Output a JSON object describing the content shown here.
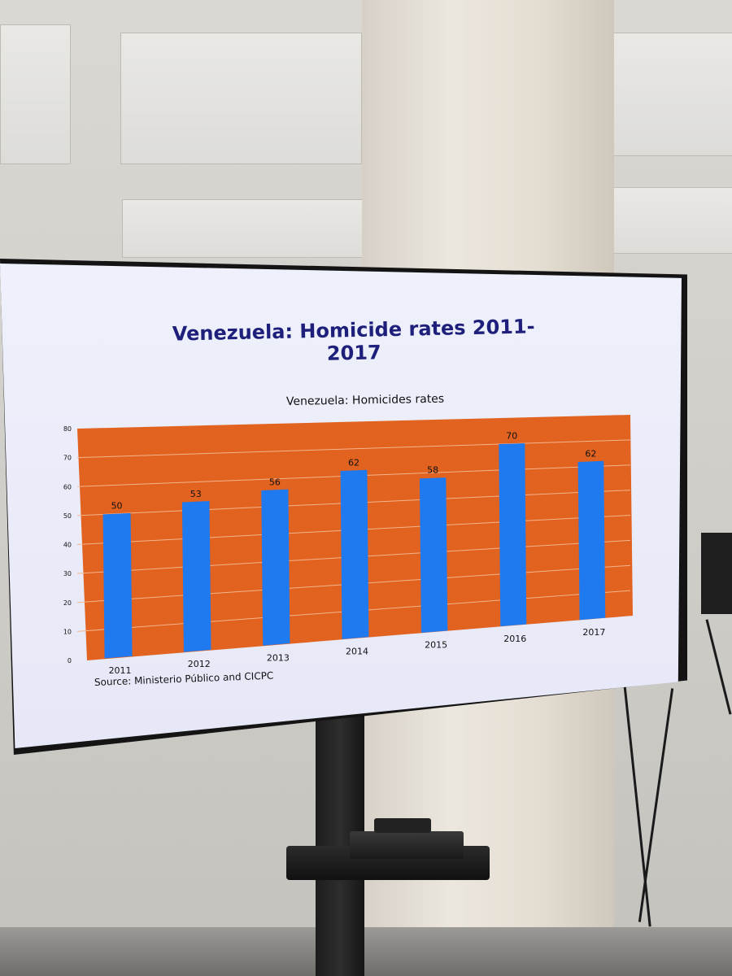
{
  "slide": {
    "title": "Venezuela: Homicide rates 2011-2017",
    "source": "Source: Ministerio Público and CICPC"
  },
  "colors": {
    "plot_background": "#e2621f",
    "bar": "#1f7af0",
    "title": "#1d1f7a",
    "gridline": "#f3b58e"
  },
  "chart_data": {
    "type": "bar",
    "title": "Venezuela: Homicides rates",
    "categories": [
      "2011",
      "2012",
      "2013",
      "2014",
      "2015",
      "2016",
      "2017"
    ],
    "values": [
      50,
      53,
      56,
      62,
      58,
      70,
      62
    ],
    "data_labels": [
      "50",
      "53",
      "56",
      "62",
      "58",
      "70",
      "62"
    ],
    "yticks": [
      "0",
      "10",
      "20",
      "30",
      "40",
      "50",
      "60",
      "70",
      "80"
    ],
    "ylim": [
      0,
      80
    ],
    "xlabel": "",
    "ylabel": "",
    "grid": true,
    "legend": "none"
  }
}
